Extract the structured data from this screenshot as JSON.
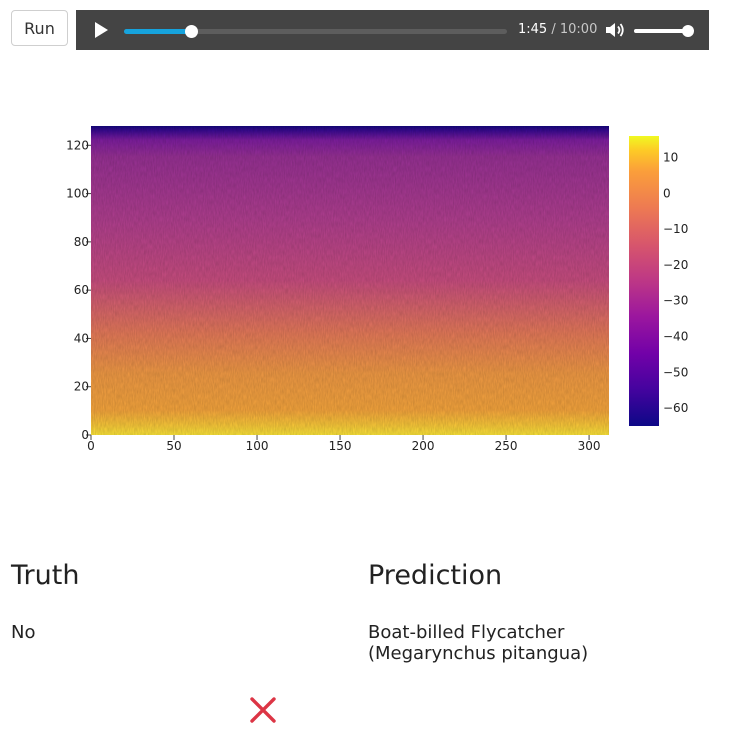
{
  "toolbar": {
    "run_label": "Run"
  },
  "player": {
    "current_time": "1:45",
    "separator": "/",
    "duration": "10:00",
    "progress": 0.175,
    "volume": 1.0,
    "play_icon": "play-icon",
    "volume_icon": "volume-icon"
  },
  "chart_data": {
    "type": "heatmap",
    "description_note": "",
    "x_ticks": [
      0,
      50,
      100,
      150,
      200,
      250,
      300
    ],
    "y_ticks": [
      0,
      20,
      40,
      60,
      80,
      100,
      120
    ],
    "xlim": [
      0,
      312
    ],
    "ylim": [
      0,
      128
    ],
    "colorbar": {
      "ticks": [
        10,
        0,
        -10,
        -20,
        -30,
        -40,
        -50,
        -60
      ],
      "range": [
        -65,
        16
      ],
      "colormap": "plasma"
    }
  },
  "results": {
    "truth_heading": "Truth",
    "truth_value": "No",
    "prediction_heading": "Prediction",
    "prediction_value_line1": "Boat-billed Flycatcher",
    "prediction_value_line2": "(Megarynchus pitangua)",
    "status_icon": "cross-icon",
    "status_color": "#dc3545"
  }
}
